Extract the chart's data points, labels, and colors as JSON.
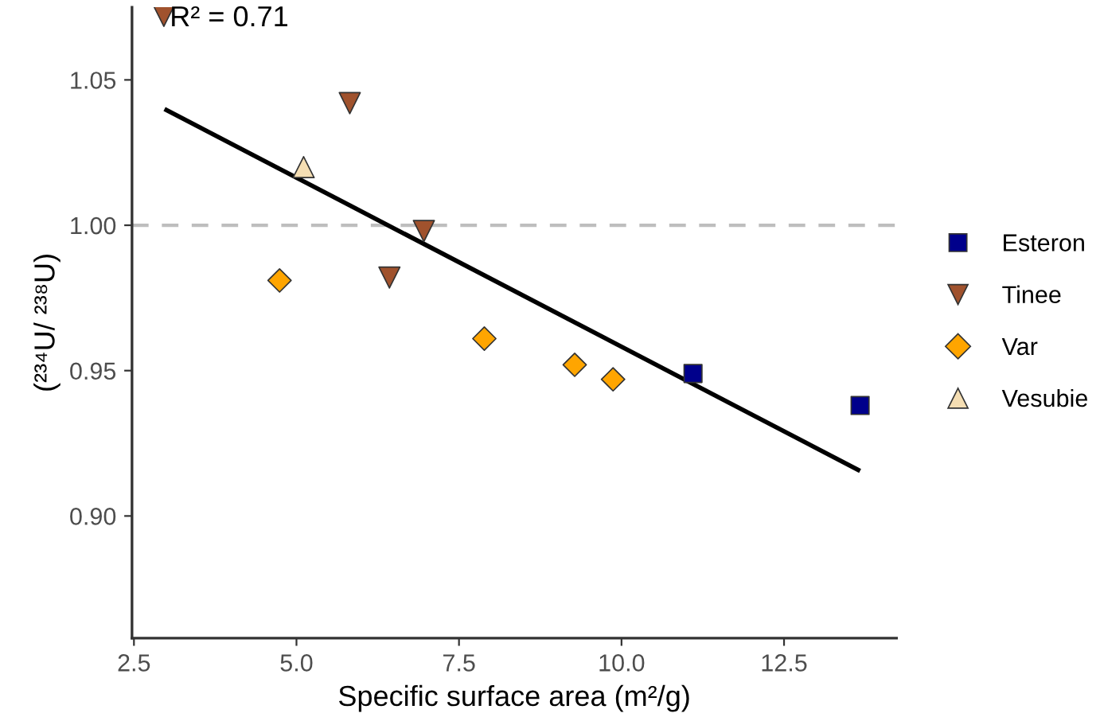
{
  "chart_data": {
    "type": "scatter",
    "xlabel": "Specific surface area (m²/g)",
    "ylabel": "(²³⁴U/ ²³⁸U)",
    "xlim": [
      2.47,
      14.23
    ],
    "ylim": [
      0.858,
      1.075
    ],
    "xticks": [
      {
        "value": 2.5,
        "label": "2.5"
      },
      {
        "value": 5,
        "label": "5.0"
      },
      {
        "value": 7.5,
        "label": "7.5"
      },
      {
        "value": 10,
        "label": "10.0"
      },
      {
        "value": 12.5,
        "label": "12.5"
      }
    ],
    "yticks": [
      {
        "value": 0.9,
        "label": "0.90"
      },
      {
        "value": 0.95,
        "label": "0.95"
      },
      {
        "value": 1.0,
        "label": "1.00"
      },
      {
        "value": 1.05,
        "label": "1.05"
      }
    ],
    "grid": false,
    "legend": "right",
    "series": [
      {
        "name": "Esteron",
        "color": "#00008b",
        "marker": "square",
        "x": [
          11.1,
          13.67
        ],
        "values": [
          0.949,
          0.938
        ]
      },
      {
        "name": "Tinee",
        "color": "#a0522d",
        "marker": "triangle_down",
        "x": [
          2.96,
          5.82,
          6.43,
          6.96
        ],
        "values": [
          1.072,
          1.042,
          0.982,
          0.998
        ]
      },
      {
        "name": "Var",
        "color": "#ffa500",
        "marker": "diamond",
        "x": [
          4.74,
          7.89,
          9.28,
          9.87
        ],
        "values": [
          0.981,
          0.961,
          0.952,
          0.947
        ]
      },
      {
        "name": "Vesubie",
        "color": "#f5deb3",
        "marker": "triangle",
        "x": [
          5.11
        ],
        "values": [
          1.02
        ]
      },
      {
        "type": "line",
        "color": "#000000",
        "x": [
          2.97,
          13.67
        ],
        "values": [
          1.04,
          0.9155
        ]
      }
    ],
    "ref_lines": [
      {
        "axis": "y",
        "value": 1.0,
        "color": "#bebebe",
        "line_style": "dashed"
      }
    ],
    "annotations": [
      {
        "text": "R² = 0.71",
        "x": 3.05,
        "y": 1.071
      }
    ]
  }
}
